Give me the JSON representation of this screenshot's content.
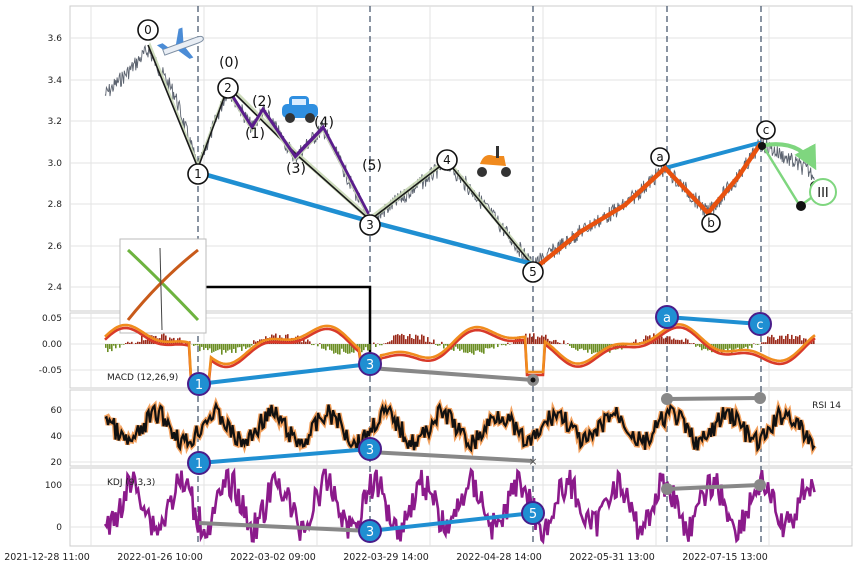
{
  "x_tick_labels": [
    "2021-12-28 11:00",
    "2022-01-26 10:00",
    "2022-03-02 09:00",
    "2022-03-29 14:00",
    "2022-04-28 14:00",
    "2022-05-31 13:00",
    "2022-07-15 13:00"
  ],
  "panels": {
    "price": {
      "y_ticks": [
        "3.6",
        "3.4",
        "3.2",
        "3.0",
        "2.8",
        "2.6",
        "2.4"
      ]
    },
    "macd": {
      "label": "MACD (12,26,9)",
      "y_ticks": [
        "0.05",
        "0.00",
        "-0.05"
      ]
    },
    "rsi": {
      "label": "RSI 14",
      "y_ticks": [
        "60",
        "40",
        "20"
      ]
    },
    "kdj": {
      "label": "KDJ (9,3,3)",
      "y_ticks": [
        "100",
        "0"
      ]
    }
  },
  "wave_labels": {
    "impulse": [
      "0",
      "1",
      "2",
      "3",
      "4",
      "5"
    ],
    "sub": [
      "(0)",
      "(1)",
      "(2)",
      "(3)",
      "(4)",
      "(5)"
    ],
    "corrective": [
      "a",
      "b",
      "c"
    ],
    "projection": "III"
  },
  "colors": {
    "price": "#5d6470",
    "trend_blue": "#1f8fd2",
    "impulse_fill": "#c9d8b6",
    "sub_wave": "#5a1d8c",
    "corrective": "#e8520f",
    "macd_line": "#f08c1e",
    "macd_signal": "#d83a2a",
    "hist_pos": "#9b2a1a",
    "hist_neg": "#6b8e23",
    "divergence_gray": "#888888",
    "kdj_line": "#8b1a8b",
    "projection_green": "#7fd67f"
  },
  "icons": [
    "airplane-icon",
    "car-icon",
    "scooter-icon",
    "thumbnail-chart-icon"
  ],
  "chart_data": [
    {
      "type": "line",
      "panel": "price",
      "ylim": [
        2.3,
        3.73
      ],
      "series": [
        {
          "points": [
            [
              "2022-01-26",
              2.95
            ],
            [
              "2022-03-29",
              2.72
            ],
            [
              "2022-04-28",
              2.52
            ]
          ]
        },
        {
          "points": [
            [
              "2022-06-15",
              2.97
            ],
            [
              "2022-07-15",
              3.09
            ]
          ]
        }
      ]
    },
    {
      "type": "line",
      "panel": "macd",
      "ylim": [
        -0.085,
        0.062
      ],
      "markers": [
        {
          "label": "1",
          "value": -0.08
        },
        {
          "label": "3",
          "value": -0.045
        },
        {
          "label": "a",
          "value": 0.05
        },
        {
          "label": "c",
          "value": 0.036
        }
      ]
    },
    {
      "type": "line",
      "panel": "rsi",
      "ylim": [
        15,
        78
      ],
      "markers": [
        {
          "label": "1",
          "value": 18
        },
        {
          "label": "3",
          "value": 30
        }
      ]
    },
    {
      "type": "line",
      "panel": "kdj",
      "ylim": [
        -30,
        140
      ],
      "markers": [
        {
          "label": "3",
          "value": -10
        },
        {
          "label": "5",
          "value": 31
        }
      ]
    }
  ]
}
